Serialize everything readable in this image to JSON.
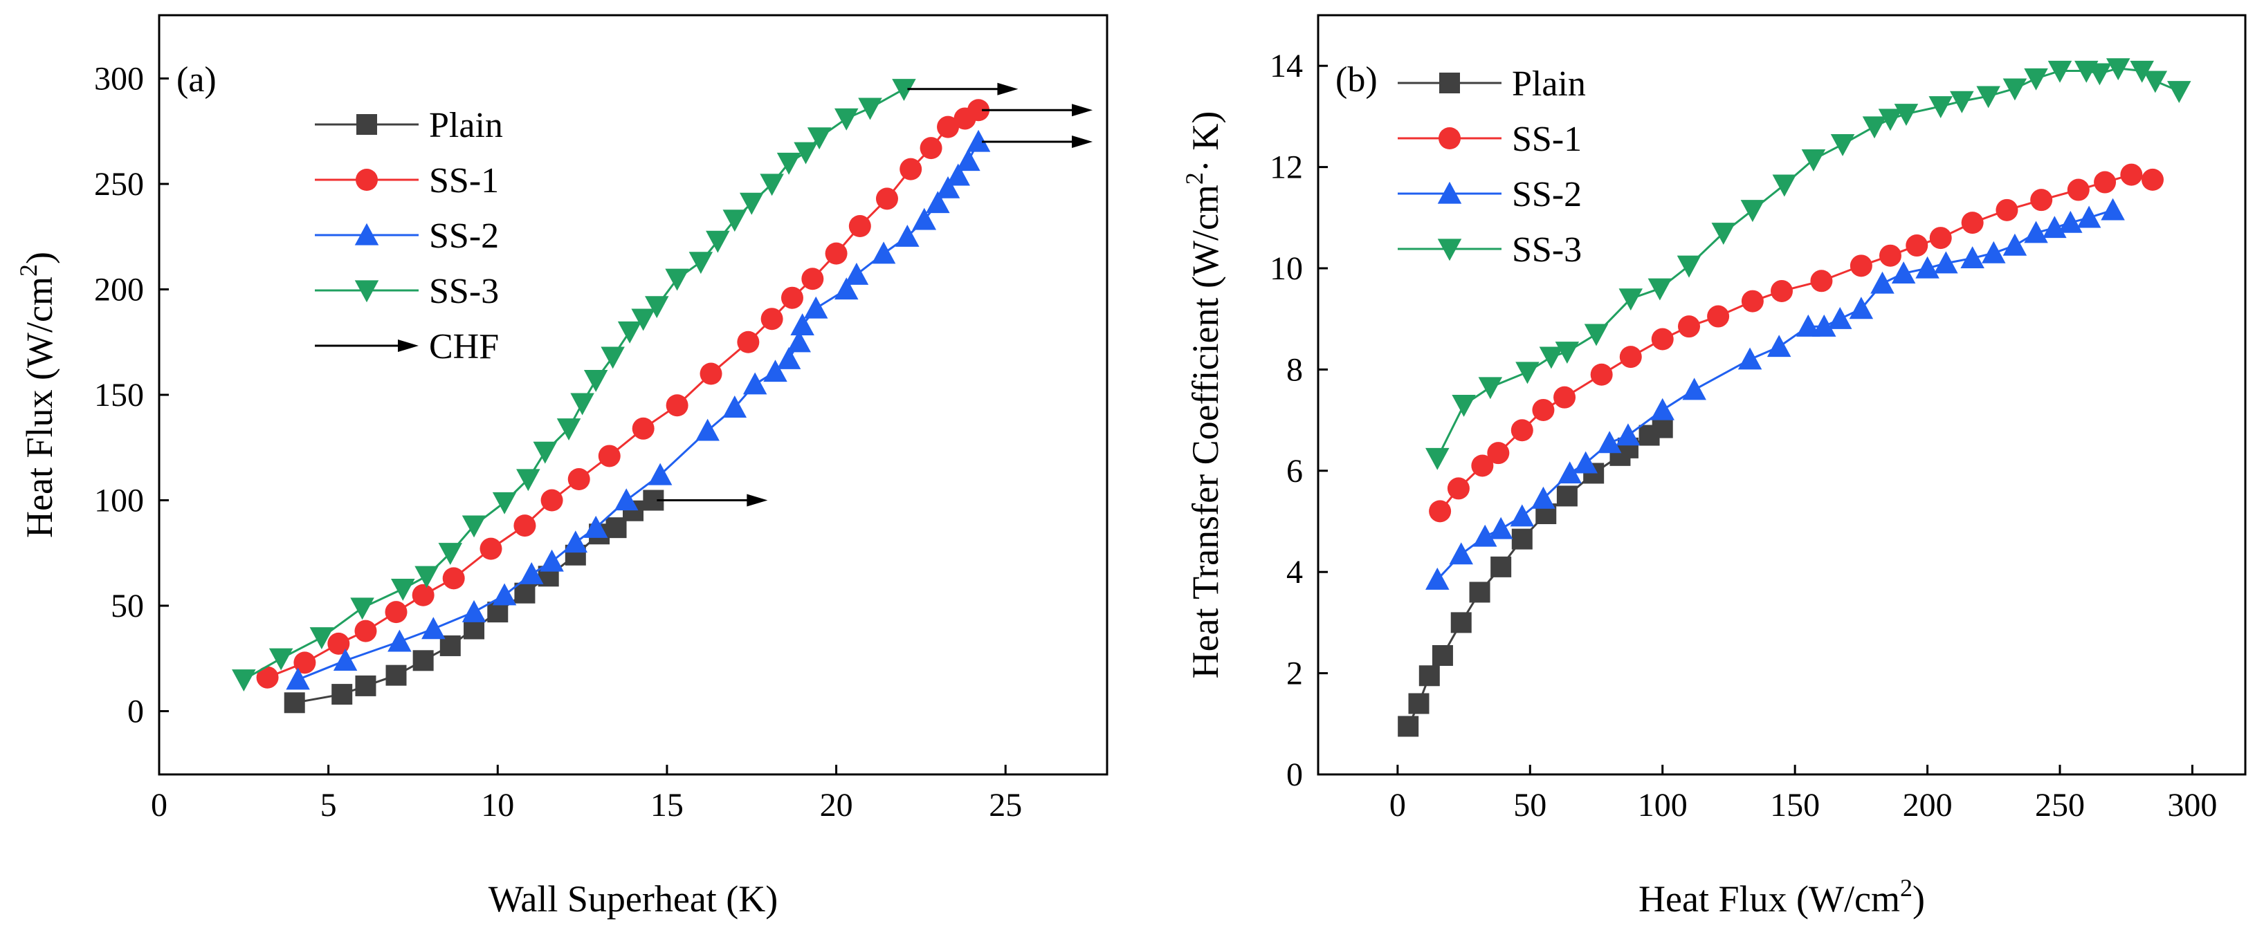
{
  "chart_data": [
    {
      "type": "line",
      "panel_label": "(a)",
      "xlabel": "Wall Superheat (K)",
      "ylabel_main": "Heat Flux (W/cm",
      "ylabel_sup": "2",
      "ylabel_tail": ")",
      "xlim": [
        0,
        28
      ],
      "ylim": [
        -30,
        330
      ],
      "xticks": [
        0,
        5,
        10,
        15,
        20,
        25
      ],
      "yticks": [
        0,
        50,
        100,
        150,
        200,
        250,
        300
      ],
      "legend": [
        "Plain",
        "SS-1",
        "SS-2",
        "SS-3"
      ],
      "chf_legend_label": "CHF",
      "series": [
        {
          "name": "Plain",
          "color": "#404040",
          "marker": "square",
          "x": [
            4.0,
            5.4,
            6.1,
            7.0,
            7.8,
            8.6,
            9.3,
            10.0,
            10.8,
            11.5,
            12.3,
            13.0,
            13.5,
            14.0,
            14.6
          ],
          "y": [
            4,
            8,
            12,
            17,
            24,
            31,
            39,
            47,
            56,
            64,
            74,
            84,
            87,
            95,
            100
          ]
        },
        {
          "name": "SS-1",
          "color": "#f03030",
          "marker": "circle",
          "x": [
            3.2,
            4.3,
            5.3,
            6.1,
            7.0,
            7.8,
            8.7,
            9.8,
            10.8,
            11.6,
            12.4,
            13.3,
            14.3,
            15.3,
            16.3,
            17.4,
            18.1,
            18.7,
            19.3,
            20.0,
            20.7,
            21.5,
            22.2,
            22.8,
            23.3,
            23.8,
            24.2
          ],
          "y": [
            16,
            23,
            32,
            38,
            47,
            55,
            63,
            77,
            88,
            100,
            110,
            121,
            134,
            145,
            160,
            175,
            186,
            196,
            205,
            217,
            230,
            243,
            257,
            267,
            277,
            281,
            285
          ]
        },
        {
          "name": "SS-2",
          "color": "#2060f0",
          "marker": "triangle-up",
          "x": [
            4.1,
            5.5,
            7.1,
            8.1,
            9.3,
            10.2,
            11.0,
            11.6,
            12.3,
            12.9,
            13.8,
            14.8,
            16.2,
            17.0,
            17.6,
            18.2,
            18.6,
            18.9,
            19.0,
            19.4,
            20.3,
            20.6,
            21.4,
            22.1,
            22.6,
            23.0,
            23.3,
            23.6,
            23.9,
            24.2
          ],
          "y": [
            15,
            24,
            33,
            39,
            47,
            55,
            65,
            71,
            80,
            87,
            100,
            112,
            133,
            144,
            155,
            161,
            167,
            175,
            183,
            191,
            200,
            207,
            217,
            225,
            233,
            241,
            248,
            254,
            261,
            270
          ]
        },
        {
          "name": "SS-3",
          "color": "#20a060",
          "marker": "triangle-down",
          "x": [
            2.5,
            3.6,
            4.8,
            6.0,
            7.2,
            7.9,
            8.6,
            9.3,
            10.2,
            10.9,
            11.4,
            12.1,
            12.5,
            12.9,
            13.4,
            13.9,
            14.3,
            14.7,
            15.3,
            16.0,
            16.5,
            17.0,
            17.5,
            18.1,
            18.6,
            19.1,
            19.5,
            20.3,
            21.0,
            22.0
          ],
          "y": [
            15,
            25,
            35,
            49,
            58,
            64,
            75,
            88,
            99,
            110,
            123,
            134,
            146,
            157,
            168,
            180,
            186,
            192,
            205,
            213,
            223,
            233,
            241,
            250,
            260,
            265,
            272,
            281,
            286,
            295
          ]
        }
      ],
      "chf_points": [
        {
          "series": "Plain",
          "x": 14.6,
          "y": 100
        },
        {
          "series": "SS-3",
          "x": 22.0,
          "y": 295
        },
        {
          "series": "SS-1",
          "x": 24.2,
          "y": 285
        },
        {
          "series": "SS-2",
          "x": 24.2,
          "y": 270
        }
      ]
    },
    {
      "type": "line",
      "panel_label": "(b)",
      "xlabel_main": "Heat Flux (W/cm",
      "xlabel_sup": "2",
      "xlabel_tail": ")",
      "ylabel_main": "Heat Transfer Coefficient (W/cm",
      "ylabel_sup": "2",
      "ylabel_tail": "· K)",
      "xlim": [
        -30,
        320
      ],
      "ylim": [
        0,
        15
      ],
      "xticks": [
        0,
        50,
        100,
        150,
        200,
        250,
        300
      ],
      "yticks": [
        0,
        2,
        4,
        6,
        8,
        10,
        12,
        14
      ],
      "legend": [
        "Plain",
        "SS-1",
        "SS-2",
        "SS-3"
      ],
      "series": [
        {
          "name": "Plain",
          "color": "#404040",
          "marker": "square",
          "x": [
            4,
            8,
            12,
            17,
            24,
            31,
            39,
            47,
            56,
            64,
            74,
            84,
            87,
            95,
            100
          ],
          "y": [
            0.95,
            1.4,
            1.95,
            2.35,
            3.0,
            3.6,
            4.1,
            4.65,
            5.15,
            5.5,
            5.95,
            6.3,
            6.45,
            6.7,
            6.85
          ]
        },
        {
          "name": "SS-1",
          "color": "#f03030",
          "marker": "circle",
          "x": [
            16,
            23,
            32,
            38,
            47,
            55,
            63,
            77,
            88,
            100,
            110,
            121,
            134,
            145,
            160,
            175,
            186,
            196,
            205,
            217,
            230,
            243,
            257,
            267,
            277,
            285
          ],
          "y": [
            5.2,
            5.65,
            6.1,
            6.35,
            6.8,
            7.2,
            7.45,
            7.9,
            8.25,
            8.6,
            8.85,
            9.05,
            9.35,
            9.55,
            9.75,
            10.05,
            10.25,
            10.45,
            10.6,
            10.9,
            11.15,
            11.35,
            11.55,
            11.7,
            11.85,
            11.75
          ]
        },
        {
          "name": "SS-2",
          "color": "#2060f0",
          "marker": "triangle-up",
          "x": [
            15,
            24,
            33,
            39,
            47,
            55,
            65,
            71,
            80,
            87,
            100,
            112,
            133,
            144,
            155,
            161,
            167,
            175,
            183,
            191,
            200,
            207,
            217,
            225,
            233,
            241,
            248,
            254,
            261,
            270
          ],
          "y": [
            3.85,
            4.35,
            4.7,
            4.85,
            5.1,
            5.45,
            5.95,
            6.15,
            6.55,
            6.7,
            7.2,
            7.6,
            8.2,
            8.45,
            8.85,
            8.85,
            9.0,
            9.2,
            9.7,
            9.9,
            10.0,
            10.1,
            10.2,
            10.3,
            10.45,
            10.7,
            10.8,
            10.9,
            11.0,
            11.15
          ]
        },
        {
          "name": "SS-3",
          "color": "#20a060",
          "marker": "triangle-down",
          "x": [
            15,
            25,
            35,
            49,
            58,
            64,
            75,
            88,
            99,
            110,
            123,
            134,
            146,
            157,
            168,
            180,
            186,
            192,
            205,
            213,
            223,
            233,
            241,
            250,
            260,
            265,
            272,
            281,
            286,
            295
          ],
          "y": [
            6.25,
            7.3,
            7.65,
            7.95,
            8.25,
            8.35,
            8.7,
            9.4,
            9.6,
            10.05,
            10.7,
            11.15,
            11.65,
            12.15,
            12.45,
            12.8,
            12.95,
            13.05,
            13.2,
            13.3,
            13.4,
            13.55,
            13.75,
            13.9,
            13.9,
            13.85,
            13.95,
            13.9,
            13.7,
            13.5
          ]
        }
      ]
    }
  ]
}
